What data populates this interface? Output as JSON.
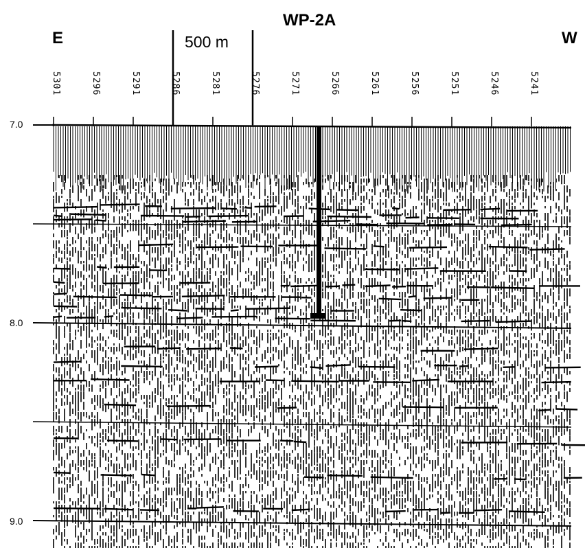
{
  "section": {
    "title": "WP-2A",
    "left_direction": "E",
    "right_direction": "W",
    "scale_bar_label": "500 m"
  },
  "cdp_labels": [
    "5301",
    "5296",
    "5291",
    "5286",
    "5281",
    "5276",
    "5271",
    "5266",
    "5261",
    "5256",
    "5251",
    "5246",
    "5241"
  ],
  "time_labels": [
    "7.0",
    "8.0",
    "9.0"
  ],
  "colors": {
    "ink": "#000000",
    "paper": "#ffffff"
  }
}
